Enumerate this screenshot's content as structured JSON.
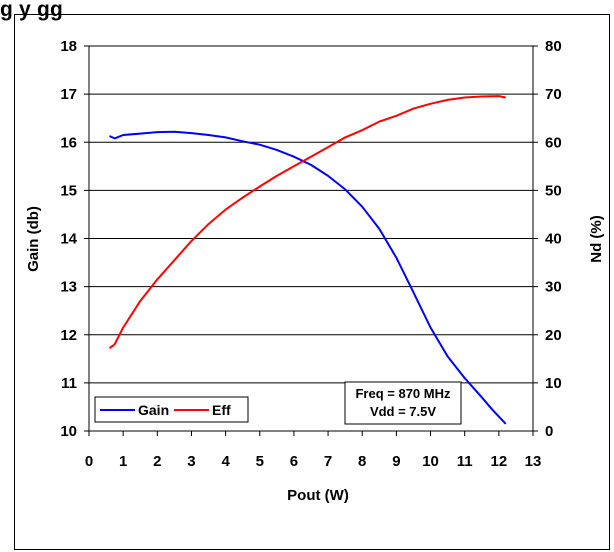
{
  "title_fragment": "g                                    y   gg",
  "chart_data": {
    "type": "line",
    "xlabel": "Pout (W)",
    "ylabel_left": "Gain (db)",
    "ylabel_right": "Nd (%)",
    "xlim": [
      0,
      13
    ],
    "ylim_left": [
      10,
      18
    ],
    "ylim_right": [
      0,
      80
    ],
    "xticks": [
      "0",
      "1",
      "2",
      "3",
      "4",
      "5",
      "6",
      "7",
      "8",
      "9",
      "10",
      "11",
      "12",
      "13"
    ],
    "yticks_left": [
      "10",
      "11",
      "12",
      "13",
      "14",
      "15",
      "16",
      "17",
      "18"
    ],
    "yticks_right": [
      "0",
      "10",
      "20",
      "30",
      "40",
      "50",
      "60",
      "70",
      "80"
    ],
    "grid": "horizontal",
    "legend_position": "bottom-left",
    "annotation": [
      "Freq = 870 MHz",
      "Vdd = 7.5V"
    ],
    "series": [
      {
        "name": "Gain",
        "axis": "left",
        "color": "#0000ff",
        "points": [
          [
            0.6,
            16.13
          ],
          [
            0.75,
            16.08
          ],
          [
            1.0,
            16.15
          ],
          [
            1.5,
            16.18
          ],
          [
            2.0,
            16.21
          ],
          [
            2.5,
            16.22
          ],
          [
            3.0,
            16.19
          ],
          [
            3.5,
            16.15
          ],
          [
            4.0,
            16.1
          ],
          [
            4.5,
            16.02
          ],
          [
            5.0,
            15.95
          ],
          [
            5.5,
            15.84
          ],
          [
            6.0,
            15.7
          ],
          [
            6.5,
            15.53
          ],
          [
            7.0,
            15.3
          ],
          [
            7.5,
            15.02
          ],
          [
            8.0,
            14.66
          ],
          [
            8.5,
            14.2
          ],
          [
            9.0,
            13.6
          ],
          [
            9.5,
            12.88
          ],
          [
            10.0,
            12.15
          ],
          [
            10.5,
            11.55
          ],
          [
            11.0,
            11.1
          ],
          [
            11.5,
            10.7
          ],
          [
            11.8,
            10.45
          ],
          [
            12.2,
            10.15
          ]
        ]
      },
      {
        "name": "Eff",
        "axis": "right",
        "color": "#ff0000",
        "points": [
          [
            0.6,
            17.2
          ],
          [
            0.75,
            18.0
          ],
          [
            1.0,
            21.5
          ],
          [
            1.5,
            27.0
          ],
          [
            2.0,
            31.5
          ],
          [
            2.5,
            35.5
          ],
          [
            3.0,
            39.5
          ],
          [
            3.5,
            43.0
          ],
          [
            4.0,
            46.0
          ],
          [
            4.5,
            48.5
          ],
          [
            5.0,
            50.8
          ],
          [
            5.5,
            53.0
          ],
          [
            6.0,
            55.0
          ],
          [
            6.5,
            57.0
          ],
          [
            7.0,
            59.0
          ],
          [
            7.5,
            61.0
          ],
          [
            8.0,
            62.5
          ],
          [
            8.5,
            64.3
          ],
          [
            9.0,
            65.5
          ],
          [
            9.5,
            67.0
          ],
          [
            10.0,
            68.0
          ],
          [
            10.5,
            68.8
          ],
          [
            11.0,
            69.3
          ],
          [
            11.5,
            69.5
          ],
          [
            12.0,
            69.6
          ],
          [
            12.2,
            69.3
          ]
        ]
      }
    ]
  }
}
